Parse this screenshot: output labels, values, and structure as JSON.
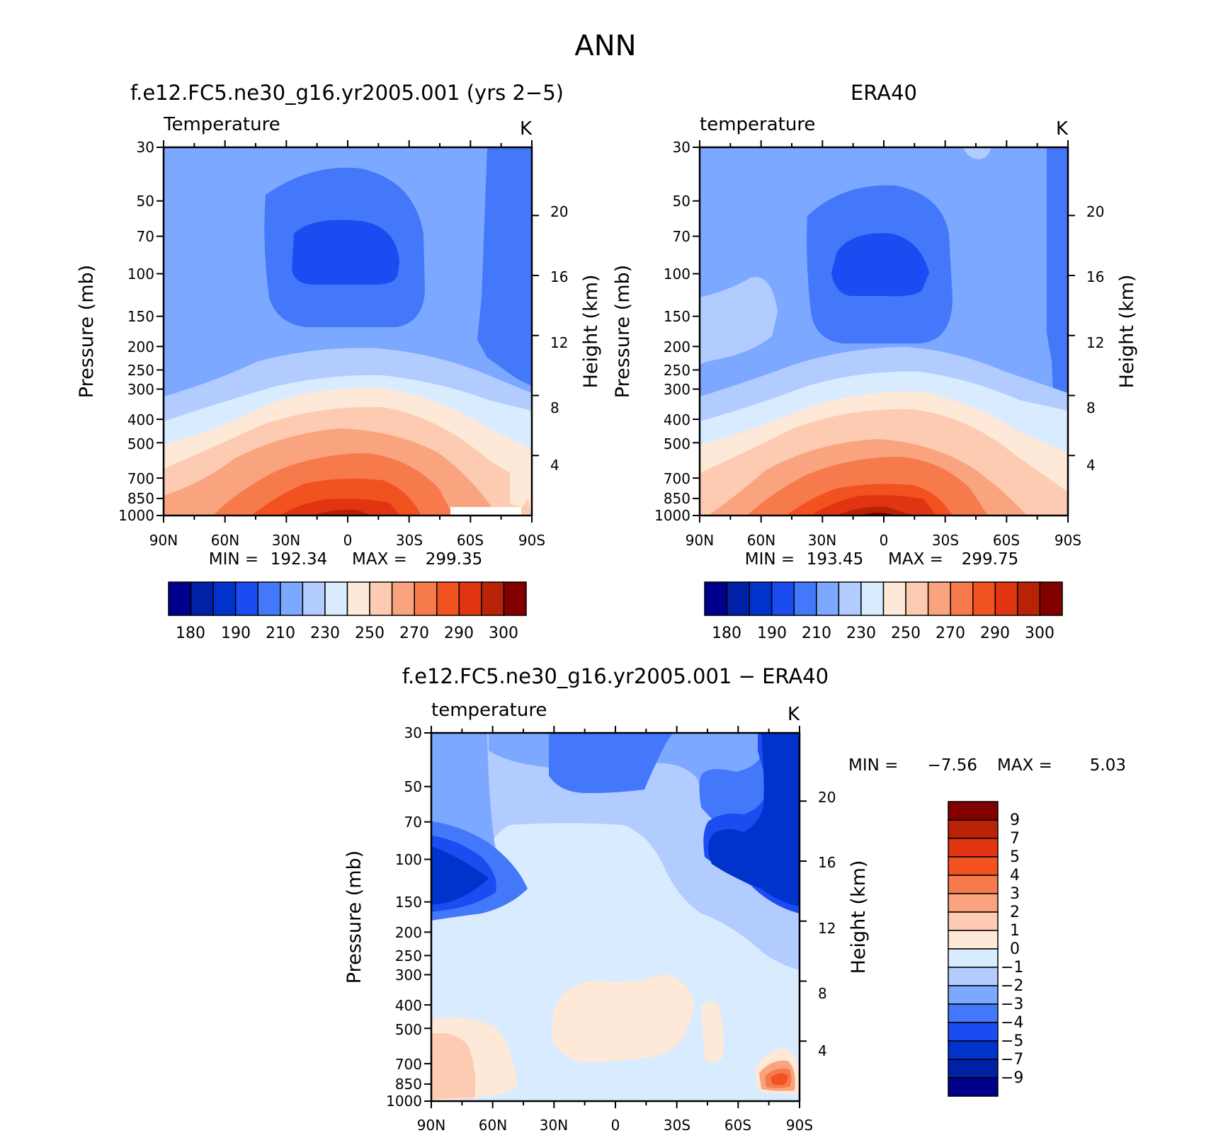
{
  "figure": {
    "title": "ANN"
  },
  "palette": {
    "temperature": [
      "#00008c",
      "#0021a6",
      "#0033cc",
      "#1a4cf2",
      "#4478fa",
      "#7da8ff",
      "#b3ccff",
      "#d9ecff",
      "#fee8d7",
      "#fccbb1",
      "#f9a47f",
      "#f77a4c",
      "#f2521f",
      "#e13512",
      "#b82307",
      "#820000"
    ],
    "difference": [
      "#820000",
      "#b82307",
      "#e13512",
      "#f2521f",
      "#f77a4c",
      "#f9a47f",
      "#fccbb1",
      "#fee8d7",
      "#d9ecff",
      "#b3ccff",
      "#7da8ff",
      "#4478fa",
      "#1a4cf2",
      "#0033cc",
      "#0021a6",
      "#00008c"
    ]
  },
  "chart_data": [
    {
      "id": "model",
      "type": "heatmap",
      "title": "f.e12.FC5.ne30_g16.yr2005.001 (yrs 2−5)",
      "left_label": "Temperature",
      "units": "K",
      "ylabel": "Pressure (mb)",
      "ylabel_right": "Height (km)",
      "x_ticks": [
        "90N",
        "60N",
        "30N",
        "0",
        "30S",
        "60S",
        "90S"
      ],
      "y_ticks": [
        "30",
        "50",
        "70",
        "100",
        "150",
        "200",
        "250",
        "300",
        "400",
        "500",
        "700",
        "850",
        "1000"
      ],
      "y_ticks_right": [
        "20",
        "16",
        "12",
        "8",
        "4"
      ],
      "min_label": "MIN =",
      "min": "192.34",
      "max_label": "MAX =",
      "max": "299.35",
      "colorbar_labels": [
        "180",
        "190",
        "210",
        "230",
        "250",
        "270",
        "290",
        "300"
      ],
      "approx_range": [
        192.34,
        299.35
      ]
    },
    {
      "id": "obs",
      "type": "heatmap",
      "title": "ERA40",
      "left_label": "temperature",
      "units": "K",
      "ylabel": "Pressure (mb)",
      "ylabel_right": "Height (km)",
      "x_ticks": [
        "90N",
        "60N",
        "30N",
        "0",
        "30S",
        "60S",
        "90S"
      ],
      "y_ticks": [
        "30",
        "50",
        "70",
        "100",
        "150",
        "200",
        "250",
        "300",
        "400",
        "500",
        "700",
        "850",
        "1000"
      ],
      "y_ticks_right": [
        "20",
        "16",
        "12",
        "8",
        "4"
      ],
      "min_label": "MIN =",
      "min": "193.45",
      "max_label": "MAX =",
      "max": "299.75",
      "colorbar_labels": [
        "180",
        "190",
        "210",
        "230",
        "250",
        "270",
        "290",
        "300"
      ],
      "approx_range": [
        193.45,
        299.75
      ]
    },
    {
      "id": "diff",
      "type": "heatmap",
      "title": "f.e12.FC5.ne30_g16.yr2005.001 − ERA40",
      "left_label": "temperature",
      "units": "K",
      "ylabel": "Pressure (mb)",
      "ylabel_right": "Height (km)",
      "x_ticks": [
        "90N",
        "60N",
        "30N",
        "0",
        "30S",
        "60S",
        "90S"
      ],
      "y_ticks": [
        "30",
        "50",
        "70",
        "100",
        "150",
        "200",
        "250",
        "300",
        "400",
        "500",
        "700",
        "850",
        "1000"
      ],
      "y_ticks_right": [
        "20",
        "16",
        "12",
        "8",
        "4"
      ],
      "min_label": "MIN =",
      "min": "−7.56",
      "max_label": "MAX =",
      "max": "5.03",
      "colorbar_labels": [
        "9",
        "7",
        "5",
        "4",
        "3",
        "2",
        "1",
        "0",
        "−1",
        "−2",
        "−3",
        "−4",
        "−5",
        "−7",
        "−9"
      ],
      "approx_range": [
        -7.56,
        5.03
      ]
    }
  ]
}
